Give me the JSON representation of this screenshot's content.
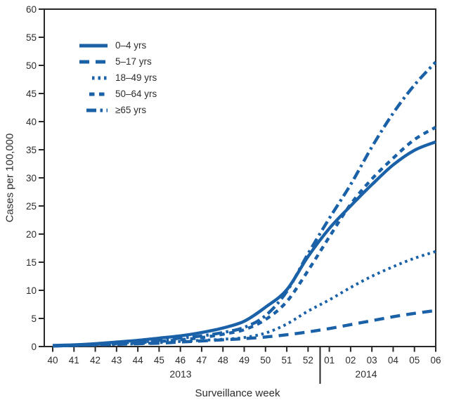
{
  "figure": {
    "ylabel": "Cases per 100,000",
    "xlabel": "Surveillance week",
    "year_left": "2013",
    "year_right": "2014"
  },
  "chart_data": {
    "type": "line",
    "title": "",
    "xlabel": "Surveillance week",
    "ylabel": "Cases per 100,000",
    "ylim": [
      0,
      60
    ],
    "ytick_interval": 5,
    "grid": false,
    "legend_position": "top-left-inside",
    "line_color": "#1a61a8",
    "axis_color": "#2a2827",
    "text_color": "#2e2d2c",
    "x_categories": [
      "40",
      "41",
      "42",
      "43",
      "44",
      "45",
      "46",
      "47",
      "48",
      "49",
      "50",
      "51",
      "52",
      "01",
      "02",
      "03",
      "04",
      "05",
      "06"
    ],
    "x_year_groups": [
      {
        "label": "2013",
        "weeks": "40–52"
      },
      {
        "label": "2014",
        "weeks": "01–06"
      }
    ],
    "series": [
      {
        "name": "0–4 yrs",
        "style": "solid",
        "values": [
          0.2,
          0.3,
          0.5,
          0.8,
          1.1,
          1.5,
          1.9,
          2.5,
          3.3,
          4.5,
          7.0,
          10.1,
          16.0,
          21.0,
          25.0,
          28.8,
          32.3,
          34.9,
          36.4
        ]
      },
      {
        "name": "5–17 yrs",
        "style": "long-dash",
        "values": [
          0.1,
          0.2,
          0.3,
          0.4,
          0.5,
          0.6,
          0.8,
          1.0,
          1.2,
          1.4,
          1.7,
          2.1,
          2.6,
          3.2,
          3.9,
          4.6,
          5.3,
          5.9,
          6.4
        ]
      },
      {
        "name": "18–49 yrs",
        "style": "dotted",
        "values": [
          0.1,
          0.2,
          0.3,
          0.4,
          0.5,
          0.7,
          0.9,
          1.1,
          1.3,
          1.6,
          2.4,
          4.0,
          6.3,
          8.3,
          10.5,
          12.5,
          14.2,
          15.7,
          16.9
        ]
      },
      {
        "name": "50–64 yrs",
        "style": "medium-dash",
        "values": [
          0.1,
          0.2,
          0.3,
          0.5,
          0.7,
          0.9,
          1.2,
          1.6,
          2.2,
          3.0,
          4.8,
          8.0,
          13.5,
          19.5,
          25.3,
          29.8,
          33.5,
          36.8,
          39.0
        ]
      },
      {
        "name": "≥65 yrs",
        "style": "dash-dot",
        "values": [
          0.1,
          0.2,
          0.4,
          0.6,
          0.8,
          1.1,
          1.5,
          1.9,
          2.5,
          3.4,
          5.5,
          9.8,
          16.5,
          22.8,
          28.8,
          35.5,
          41.5,
          46.5,
          50.6
        ]
      }
    ]
  }
}
